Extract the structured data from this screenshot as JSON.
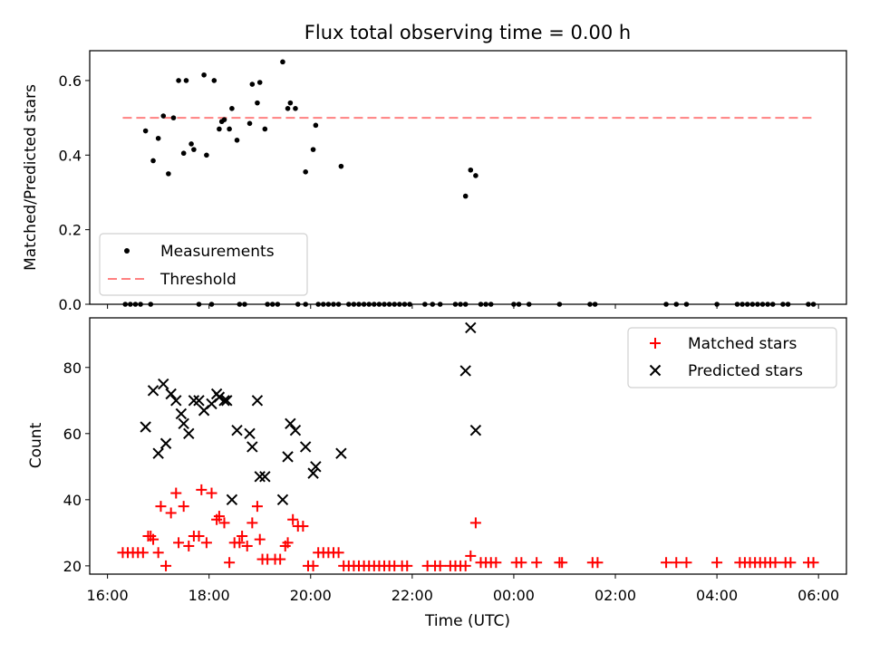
{
  "chart_data": [
    {
      "type": "scatter",
      "title": "Flux total observing time = 0.00 h",
      "xlabel": "",
      "ylabel": "Matched/Predicted stars",
      "xlim": [
        15.65,
        30.55
      ],
      "ylim": [
        0.0,
        0.68
      ],
      "y_ticks": [
        0.0,
        0.2,
        0.4,
        0.6
      ],
      "y_tick_labels": [
        "0.0",
        "0.2",
        "0.4",
        "0.6"
      ],
      "legend_position": "lower-left",
      "grid": false,
      "series": [
        {
          "name": "Measurements",
          "marker": "dot",
          "color": "#000000",
          "x": [
            16.75,
            16.9,
            17.0,
            17.1,
            17.2,
            17.3,
            17.4,
            17.5,
            17.55,
            17.65,
            17.7,
            17.9,
            17.95,
            18.1,
            18.2,
            18.25,
            18.3,
            18.4,
            18.45,
            18.55,
            18.8,
            18.85,
            18.95,
            19.0,
            19.1,
            19.45,
            19.55,
            19.6,
            19.7,
            19.9,
            20.05,
            20.1,
            20.6,
            23.05,
            23.15,
            23.25
          ],
          "y": [
            0.465,
            0.385,
            0.445,
            0.505,
            0.35,
            0.5,
            0.6,
            0.405,
            0.6,
            0.43,
            0.415,
            0.615,
            0.4,
            0.6,
            0.47,
            0.49,
            0.495,
            0.47,
            0.525,
            0.44,
            0.485,
            0.59,
            0.54,
            0.595,
            0.47,
            0.65,
            0.525,
            0.54,
            0.525,
            0.355,
            0.415,
            0.48,
            0.37,
            0.29,
            0.36,
            0.345
          ]
        },
        {
          "name": "",
          "marker": "dot",
          "color": "#000000",
          "x": [
            16.35,
            16.45,
            16.55,
            16.65,
            16.85,
            17.8,
            18.05,
            18.6,
            18.7,
            19.15,
            19.25,
            19.35,
            19.75,
            19.9,
            20.15,
            20.25,
            20.35,
            20.45,
            20.55,
            20.75,
            20.85,
            20.95,
            21.05,
            21.15,
            21.25,
            21.35,
            21.45,
            21.55,
            21.65,
            21.75,
            21.85,
            21.95,
            22.25,
            22.4,
            22.55,
            22.85,
            22.95,
            23.05,
            23.35,
            23.45,
            23.55,
            24.0,
            24.1,
            24.3,
            24.9,
            25.5,
            25.6,
            27.0,
            27.2,
            27.4,
            28.0,
            28.4,
            28.5,
            28.6,
            28.7,
            28.8,
            28.9,
            29.0,
            29.1,
            29.3,
            29.4,
            29.8,
            29.9
          ],
          "y": [
            0,
            0,
            0,
            0,
            0,
            0,
            0,
            0,
            0,
            0,
            0,
            0,
            0,
            0,
            0,
            0,
            0,
            0,
            0,
            0,
            0,
            0,
            0,
            0,
            0,
            0,
            0,
            0,
            0,
            0,
            0,
            0,
            0,
            0,
            0,
            0,
            0,
            0,
            0,
            0,
            0,
            0,
            0,
            0,
            0,
            0,
            0,
            0,
            0,
            0,
            0,
            0,
            0,
            0,
            0,
            0,
            0,
            0,
            0,
            0,
            0,
            0,
            0
          ]
        },
        {
          "name": "Threshold",
          "marker": "dashed-line",
          "color": "#ff8080",
          "x": [
            16.3,
            29.9
          ],
          "y": [
            0.5,
            0.5
          ]
        }
      ]
    },
    {
      "type": "scatter",
      "title": "",
      "xlabel": "Time (UTC)",
      "ylabel": "Count",
      "xlim": [
        15.65,
        30.55
      ],
      "ylim": [
        17.5,
        95.0
      ],
      "x_ticks": [
        16,
        18,
        20,
        22,
        24,
        26,
        28,
        30
      ],
      "x_tick_labels": [
        "16:00",
        "18:00",
        "20:00",
        "22:00",
        "00:00",
        "02:00",
        "04:00",
        "06:00"
      ],
      "y_ticks": [
        20,
        40,
        60,
        80
      ],
      "y_tick_labels": [
        "20",
        "40",
        "60",
        "80"
      ],
      "legend_position": "upper-right",
      "grid": false,
      "series": [
        {
          "name": "Matched stars",
          "marker": "plus",
          "color": "#ff0000",
          "x": [
            16.3,
            16.4,
            16.5,
            16.6,
            16.7,
            16.8,
            16.85,
            16.9,
            17.0,
            17.05,
            17.15,
            17.25,
            17.35,
            17.4,
            17.5,
            17.6,
            17.7,
            17.8,
            17.85,
            17.95,
            18.05,
            18.15,
            18.2,
            18.3,
            18.4,
            18.5,
            18.6,
            18.65,
            18.75,
            18.85,
            18.95,
            19.0,
            19.05,
            19.15,
            19.3,
            19.4,
            19.5,
            19.55,
            19.65,
            19.75,
            19.85,
            19.95,
            20.05,
            20.15,
            20.25,
            20.35,
            20.45,
            20.55,
            20.65,
            20.75,
            20.85,
            20.95,
            21.05,
            21.15,
            21.25,
            21.35,
            21.45,
            21.55,
            21.65,
            21.8,
            21.9,
            22.3,
            22.45,
            22.55,
            22.75,
            22.85,
            22.95,
            23.05,
            23.15,
            23.25,
            23.35,
            23.45,
            23.55,
            23.65,
            24.05,
            24.15,
            24.45,
            24.9,
            24.95,
            25.55,
            25.65,
            27.0,
            27.2,
            27.4,
            28.0,
            28.45,
            28.55,
            28.65,
            28.75,
            28.85,
            28.95,
            29.05,
            29.15,
            29.35,
            29.45,
            29.8,
            29.9
          ],
          "y": [
            24,
            24,
            24,
            24,
            24,
            29,
            29,
            28,
            24,
            38,
            20,
            36,
            42,
            27,
            38,
            26,
            29,
            29,
            43,
            27,
            42,
            34,
            35,
            33,
            21,
            27,
            27,
            29,
            26,
            33,
            38,
            28,
            22,
            22,
            22,
            22,
            26,
            27,
            34,
            32,
            32,
            20,
            20,
            24,
            24,
            24,
            24,
            24,
            20,
            20,
            20,
            20,
            20,
            20,
            20,
            20,
            20,
            20,
            20,
            20,
            20,
            20,
            20,
            20,
            20,
            20,
            20,
            20,
            23,
            33,
            21,
            21,
            21,
            21,
            21,
            21,
            21,
            21,
            21,
            21,
            21,
            21,
            21,
            21,
            21,
            21,
            21,
            21,
            21,
            21,
            21,
            21,
            21,
            21,
            21,
            21,
            21
          ]
        },
        {
          "name": "Predicted stars",
          "marker": "x",
          "color": "#000000",
          "x": [
            16.75,
            16.9,
            17.0,
            17.1,
            17.15,
            17.25,
            17.35,
            17.45,
            17.5,
            17.6,
            17.7,
            17.8,
            17.9,
            18.05,
            18.15,
            18.2,
            18.3,
            18.35,
            18.45,
            18.55,
            18.8,
            18.85,
            18.95,
            19.0,
            19.1,
            19.45,
            19.55,
            19.6,
            19.7,
            19.9,
            20.05,
            20.1,
            20.6,
            23.05,
            23.15,
            23.25
          ],
          "y": [
            62,
            73,
            54,
            75,
            57,
            72,
            70,
            66,
            63,
            60,
            70,
            70,
            67,
            69,
            72,
            71,
            70,
            70,
            40,
            61,
            60,
            56,
            70,
            47,
            47,
            40,
            53,
            63,
            61,
            56,
            48,
            50,
            54,
            79,
            92,
            61
          ]
        }
      ]
    }
  ]
}
